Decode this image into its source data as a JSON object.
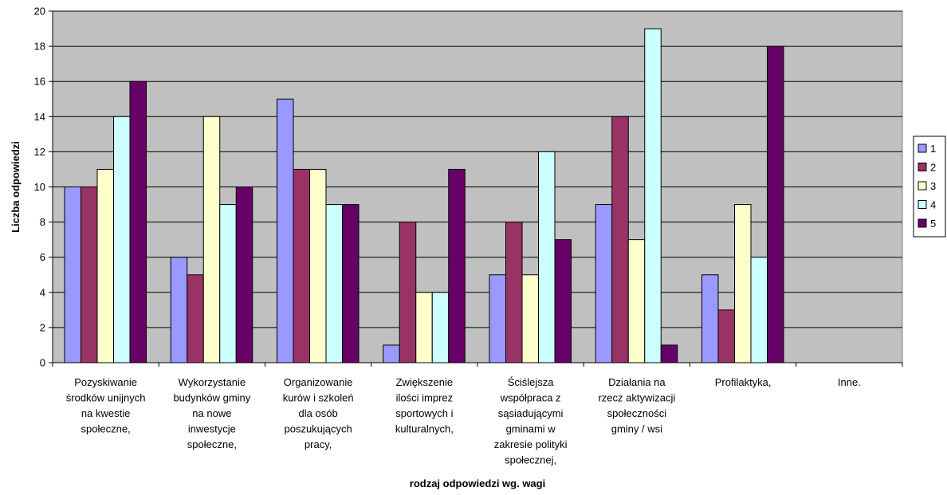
{
  "chart_data": {
    "type": "bar",
    "title": "",
    "xlabel": "rodzaj odpowiedzi wg. wagi",
    "ylabel": "Liczba odpowiedzi",
    "ylim": [
      0,
      20
    ],
    "yticks": [
      0,
      2,
      4,
      6,
      8,
      10,
      12,
      14,
      16,
      18,
      20
    ],
    "grid": true,
    "legend_position": "right",
    "categories": [
      [
        "Pozyskiwanie",
        "środków unijnych",
        "na kwestie",
        "społeczne,"
      ],
      [
        "Wykorzystanie",
        "budynków gminy",
        "na nowe",
        "inwestycje",
        "społeczne,"
      ],
      [
        "Organizowanie",
        "kurów i szkoleń",
        "dla osób",
        "poszukujących",
        "pracy,"
      ],
      [
        "Zwiększenie",
        "ilości imprez",
        "sportowych i",
        "kulturalnych,"
      ],
      [
        "Ściślejsza",
        "współpraca z",
        "sąsiadującymi",
        "gminami w",
        "zakresie polityki",
        "społecznej,"
      ],
      [
        "Działania na",
        "rzecz aktywizacji",
        "społeczności",
        "gminy / wsi"
      ],
      [
        "Profilaktyka,"
      ],
      [
        "Inne."
      ]
    ],
    "series": [
      {
        "name": "1",
        "color": "#9999ff",
        "values": [
          10,
          6,
          15,
          1,
          5,
          9,
          5,
          null
        ]
      },
      {
        "name": "2",
        "color": "#993366",
        "values": [
          10,
          5,
          11,
          8,
          8,
          14,
          3,
          null
        ]
      },
      {
        "name": "3",
        "color": "#ffffcc",
        "values": [
          11,
          14,
          11,
          4,
          5,
          7,
          9,
          null
        ]
      },
      {
        "name": "4",
        "color": "#ccffff",
        "values": [
          14,
          9,
          9,
          4,
          12,
          19,
          6,
          null
        ]
      },
      {
        "name": "5",
        "color": "#660066",
        "values": [
          16,
          10,
          9,
          11,
          7,
          1,
          18,
          null
        ]
      }
    ],
    "plot_background": "#c0c0c0"
  }
}
